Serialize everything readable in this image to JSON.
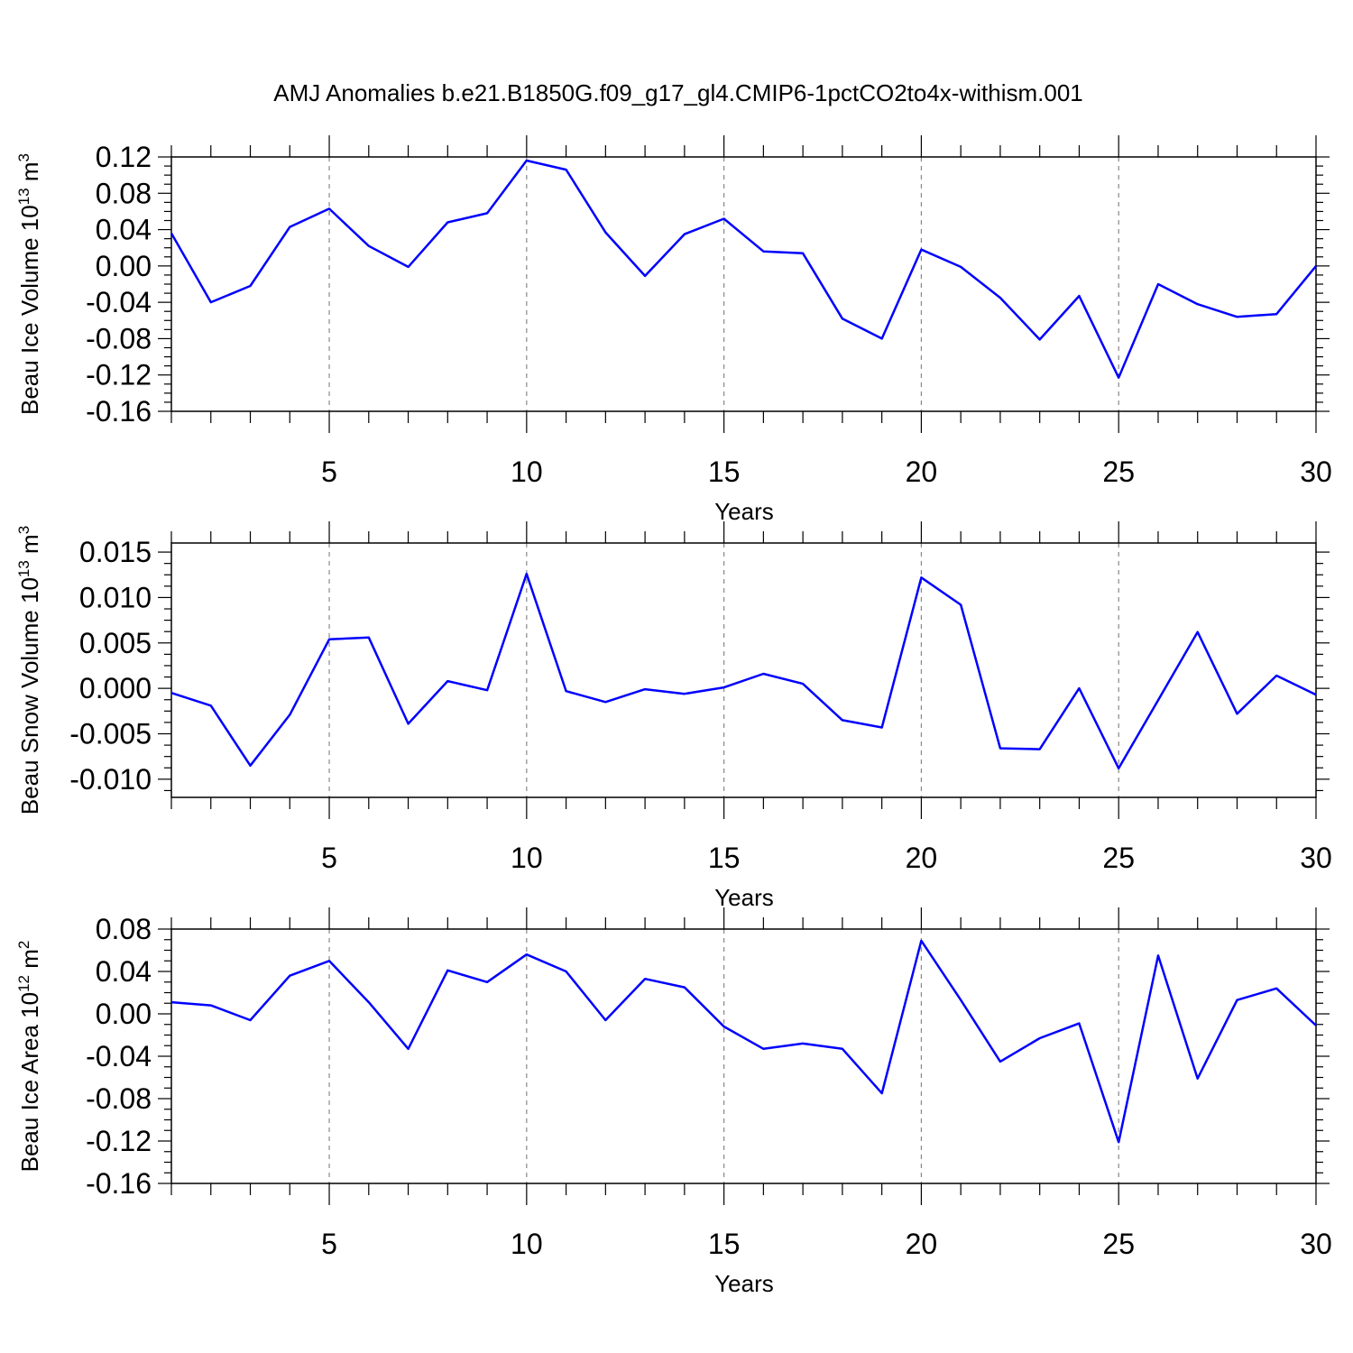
{
  "figure": {
    "title": "AMJ Anomalies b.e21.B1850G.f09_g17_gl4.CMIP6-1pctCO2to4x-withism.001"
  },
  "chart_data": [
    {
      "type": "line",
      "title": "",
      "xlabel": "Years",
      "ylabel": {
        "text": "Beau Ice Volume 10",
        "sup": "13",
        "unit": " m",
        "unit_sup": "3"
      },
      "xlim": [
        1,
        30
      ],
      "ylim": [
        -0.16,
        0.12
      ],
      "x_ticks": [
        5,
        10,
        15,
        20,
        25,
        30
      ],
      "y_ticks": [
        -0.16,
        -0.12,
        -0.08,
        -0.04,
        0.0,
        0.04,
        0.08,
        0.12
      ],
      "y_tick_labels": [
        "-0.16",
        "-0.12",
        "-0.08",
        "-0.04",
        "0.00",
        "0.04",
        "0.08",
        "0.12"
      ],
      "x_gridlines": [
        5,
        10,
        15,
        20,
        25
      ],
      "color": "#0000ff",
      "series": [
        {
          "name": "Beau Ice Volume",
          "x": [
            1,
            2,
            3,
            4,
            5,
            6,
            7,
            8,
            9,
            10,
            11,
            12,
            13,
            14,
            15,
            16,
            17,
            18,
            19,
            20,
            21,
            22,
            23,
            24,
            25,
            26,
            27,
            28,
            29,
            30
          ],
          "values": [
            0.036,
            -0.04,
            -0.022,
            0.043,
            0.063,
            0.022,
            -0.001,
            0.048,
            0.058,
            0.116,
            0.106,
            0.037,
            -0.011,
            0.035,
            0.052,
            0.016,
            0.014,
            -0.058,
            -0.08,
            0.018,
            -0.001,
            -0.035,
            -0.081,
            -0.033,
            -0.123,
            -0.02,
            -0.042,
            -0.056,
            -0.053,
            0.0
          ]
        }
      ]
    },
    {
      "type": "line",
      "title": "",
      "xlabel": "Years",
      "ylabel": {
        "text": "Beau Snow Volume 10",
        "sup": "13",
        "unit": " m",
        "unit_sup": "3"
      },
      "xlim": [
        1,
        30
      ],
      "ylim": [
        -0.012,
        0.016
      ],
      "x_ticks": [
        5,
        10,
        15,
        20,
        25,
        30
      ],
      "y_ticks": [
        -0.01,
        -0.005,
        0.0,
        0.005,
        0.01,
        0.015
      ],
      "y_tick_labels": [
        "-0.010",
        "-0.005",
        "0.000",
        "0.005",
        "0.010",
        "0.015"
      ],
      "x_gridlines": [
        5,
        10,
        15,
        20,
        25
      ],
      "color": "#0000ff",
      "series": [
        {
          "name": "Beau Snow Volume",
          "x": [
            1,
            2,
            3,
            4,
            5,
            6,
            7,
            8,
            9,
            10,
            11,
            12,
            13,
            14,
            15,
            16,
            17,
            18,
            19,
            20,
            21,
            22,
            23,
            24,
            25,
            26,
            27,
            28,
            29,
            30
          ],
          "values": [
            -0.0005,
            -0.0019,
            -0.0085,
            -0.0029,
            0.0054,
            0.0056,
            -0.0039,
            0.0008,
            -0.0002,
            0.0126,
            -0.0003,
            -0.0015,
            -0.0001,
            -0.0006,
            0.0001,
            0.0016,
            0.0005,
            -0.0035,
            -0.0043,
            0.0122,
            0.0092,
            -0.0066,
            -0.0067,
            0.0,
            -0.0088,
            -0.0013,
            0.0062,
            -0.0028,
            0.0014,
            -0.0007
          ]
        }
      ]
    },
    {
      "type": "line",
      "title": "",
      "xlabel": "Years",
      "ylabel": {
        "text": "Beau Ice Area 10",
        "sup": "12",
        "unit": " m",
        "unit_sup": "2"
      },
      "xlim": [
        1,
        30
      ],
      "ylim": [
        -0.16,
        0.08
      ],
      "x_ticks": [
        5,
        10,
        15,
        20,
        25,
        30
      ],
      "y_ticks": [
        -0.16,
        -0.12,
        -0.08,
        -0.04,
        0.0,
        0.04,
        0.08
      ],
      "y_tick_labels": [
        "-0.16",
        "-0.12",
        "-0.08",
        "-0.04",
        "0.00",
        "0.04",
        "0.08"
      ],
      "x_gridlines": [
        5,
        10,
        15,
        20,
        25
      ],
      "color": "#0000ff",
      "series": [
        {
          "name": "Beau Ice Area",
          "x": [
            1,
            2,
            3,
            4,
            5,
            6,
            7,
            8,
            9,
            10,
            11,
            12,
            13,
            14,
            15,
            16,
            17,
            18,
            19,
            20,
            21,
            22,
            23,
            24,
            25,
            26,
            27,
            28,
            29,
            30
          ],
          "values": [
            0.011,
            0.008,
            -0.006,
            0.036,
            0.05,
            0.011,
            -0.033,
            0.041,
            0.03,
            0.056,
            0.04,
            -0.006,
            0.033,
            0.025,
            -0.012,
            -0.033,
            -0.028,
            -0.033,
            -0.075,
            0.069,
            0.013,
            -0.045,
            -0.023,
            -0.009,
            -0.121,
            0.055,
            -0.061,
            0.013,
            0.024,
            -0.011
          ]
        }
      ]
    }
  ]
}
